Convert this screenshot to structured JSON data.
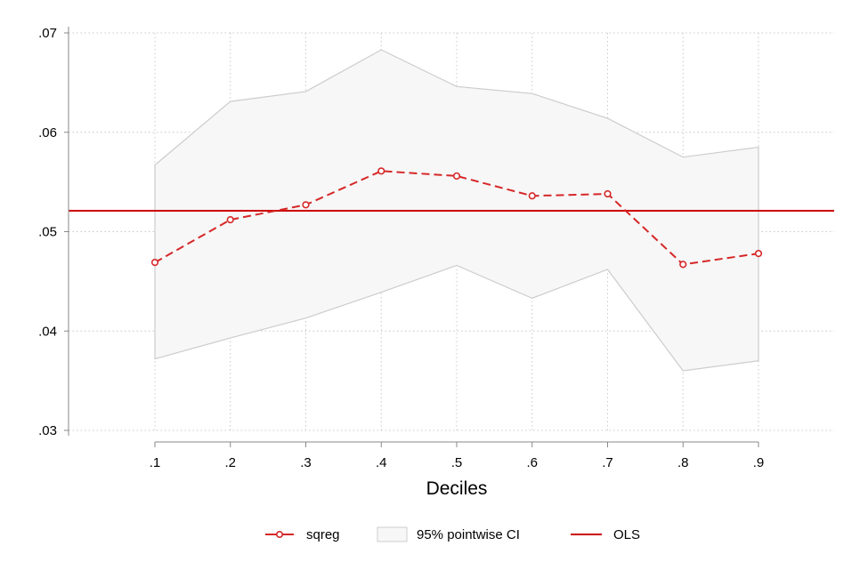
{
  "chart_data": {
    "type": "line",
    "title": "",
    "xlabel": "Deciles",
    "ylabel": "",
    "x": [
      0.1,
      0.2,
      0.3,
      0.4,
      0.5,
      0.6,
      0.7,
      0.8,
      0.9
    ],
    "x_tick_labels": [
      ".1",
      ".2",
      ".3",
      ".4",
      ".5",
      ".6",
      ".7",
      ".8",
      ".9"
    ],
    "xlim": [
      0.1,
      0.9
    ],
    "ylim": [
      0.03,
      0.07
    ],
    "y_ticks": [
      0.03,
      0.04,
      0.05,
      0.06,
      0.07
    ],
    "y_tick_labels": [
      ".03",
      ".04",
      ".05",
      ".06",
      ".07"
    ],
    "grid": true,
    "legend_position": "bottom",
    "series": [
      {
        "name": "sqreg",
        "style": "dashed-line-with-hollow-circles",
        "color": "#d62728",
        "values": [
          0.0469,
          0.0512,
          0.0527,
          0.0561,
          0.0556,
          0.0536,
          0.0538,
          0.0467,
          0.0478
        ]
      },
      {
        "name": "95% pointwise CI",
        "style": "shaded-band",
        "color": "#f7f7f7",
        "edge_color": "#cccccc",
        "upper": [
          0.0567,
          0.0631,
          0.0641,
          0.0683,
          0.0646,
          0.0639,
          0.0614,
          0.0575,
          0.0585
        ],
        "lower": [
          0.0372,
          0.0393,
          0.0413,
          0.0439,
          0.0466,
          0.0433,
          0.0462,
          0.036,
          0.037
        ]
      },
      {
        "name": "OLS",
        "style": "solid-horizontal-line",
        "color": "#cc0000",
        "value": 0.0521
      }
    ]
  }
}
